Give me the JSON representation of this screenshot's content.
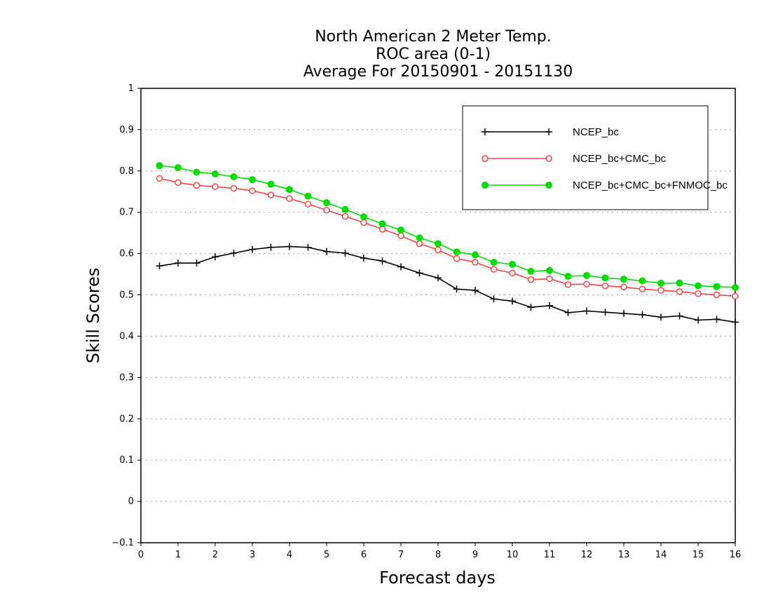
{
  "chart_data": {
    "type": "line",
    "title_lines": [
      "North American 2 Meter Temp.",
      "ROC area (0-1)",
      "Average For 20150901 - 20151130"
    ],
    "xlabel": "Forecast days",
    "ylabel": "Skill Scores",
    "xlim": [
      0,
      16
    ],
    "ylim": [
      -0.1,
      1
    ],
    "x_ticks": [
      "0",
      "1",
      "2",
      "3",
      "4",
      "5",
      "6",
      "7",
      "8",
      "9",
      "10",
      "11",
      "12",
      "13",
      "14",
      "15",
      "16"
    ],
    "y_ticks": [
      "-0.1",
      "0",
      "0.1",
      "0.2",
      "0.3",
      "0.4",
      "0.5",
      "0.6",
      "0.7",
      "0.8",
      "0.9",
      "1"
    ],
    "grid": "horizontal dotted",
    "legend_position": "top-right",
    "x": [
      0.5,
      1,
      1.5,
      2,
      2.5,
      3,
      3.5,
      4,
      4.5,
      5,
      5.5,
      6,
      6.5,
      7,
      7.5,
      8,
      8.5,
      9,
      9.5,
      10,
      10.5,
      11,
      11.5,
      12,
      12.5,
      13,
      13.5,
      14,
      14.5,
      15,
      15.5,
      16
    ],
    "series": [
      {
        "name": "NCEP_bc",
        "color": "#000000",
        "marker": "plus",
        "values": [
          0.57,
          0.577,
          0.577,
          0.592,
          0.601,
          0.61,
          0.615,
          0.617,
          0.615,
          0.605,
          0.601,
          0.589,
          0.582,
          0.568,
          0.553,
          0.541,
          0.514,
          0.511,
          0.49,
          0.485,
          0.47,
          0.474,
          0.457,
          0.461,
          0.458,
          0.455,
          0.452,
          0.446,
          0.449,
          0.439,
          0.441,
          0.434
        ]
      },
      {
        "name": "NCEP_bc+CMC_bc",
        "color": "#ff4040",
        "marker": "open-circle",
        "values": [
          0.782,
          0.772,
          0.765,
          0.762,
          0.758,
          0.752,
          0.742,
          0.733,
          0.72,
          0.705,
          0.69,
          0.675,
          0.659,
          0.643,
          0.624,
          0.609,
          0.588,
          0.579,
          0.562,
          0.553,
          0.537,
          0.539,
          0.525,
          0.526,
          0.522,
          0.519,
          0.514,
          0.511,
          0.508,
          0.503,
          0.5,
          0.497
        ]
      },
      {
        "name": "NCEP_bc+CMC_bc+FNMOC_bc",
        "color": "#00dd00",
        "marker": "filled-circle",
        "values": [
          0.813,
          0.808,
          0.797,
          0.793,
          0.786,
          0.779,
          0.768,
          0.755,
          0.739,
          0.723,
          0.707,
          0.689,
          0.672,
          0.657,
          0.638,
          0.624,
          0.604,
          0.597,
          0.579,
          0.574,
          0.557,
          0.559,
          0.545,
          0.547,
          0.541,
          0.538,
          0.534,
          0.528,
          0.529,
          0.522,
          0.52,
          0.518
        ]
      }
    ]
  }
}
